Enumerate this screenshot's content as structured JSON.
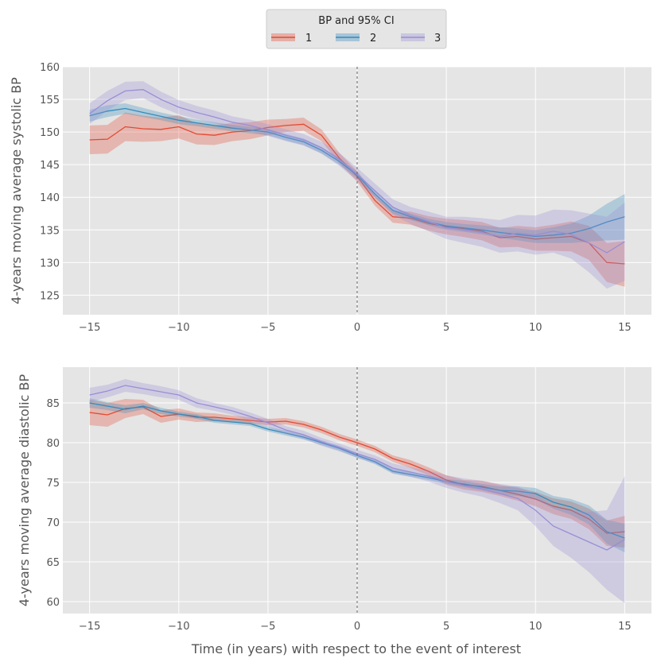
{
  "legend": {
    "title": "BP and 95% CI",
    "items": [
      {
        "label": "1",
        "color": "#e24a33"
      },
      {
        "label": "2",
        "color": "#348abd"
      },
      {
        "label": "3",
        "color": "#988ed5"
      }
    ]
  },
  "xlabel": "Time (in years) with respect to the event of interest",
  "chart_data": [
    {
      "type": "line",
      "title": "",
      "xlabel": "",
      "ylabel": "4-years moving average systolic BP",
      "xlim": [
        -16.5,
        16.5
      ],
      "ylim": [
        122,
        160
      ],
      "xticks": [
        -15,
        -10,
        -5,
        0,
        5,
        10,
        15
      ],
      "yticks": [
        125,
        130,
        135,
        140,
        145,
        150,
        155,
        160
      ],
      "vline": 0,
      "grid": true,
      "legend_position": "top-center, above plot",
      "x": [
        -15,
        -14,
        -13,
        -12,
        -11,
        -10,
        -9,
        -8,
        -7,
        -6,
        -5,
        -4,
        -3,
        -2,
        -1,
        0,
        1,
        2,
        3,
        4,
        5,
        6,
        7,
        8,
        9,
        10,
        11,
        12,
        13,
        14,
        15
      ],
      "series": [
        {
          "name": "1",
          "values": [
            148.8,
            148.9,
            150.8,
            150.5,
            150.4,
            150.8,
            149.7,
            149.5,
            150.0,
            150.2,
            150.7,
            151.0,
            151.2,
            149.5,
            146.0,
            143.2,
            139.5,
            137.0,
            136.8,
            136.0,
            135.5,
            135.2,
            134.8,
            133.8,
            134.0,
            133.6,
            133.8,
            134.0,
            133.0,
            130.0,
            129.8
          ],
          "ci_half": [
            2.2,
            2.2,
            2.2,
            2.0,
            1.8,
            1.8,
            1.6,
            1.5,
            1.4,
            1.3,
            1.2,
            1.0,
            1.0,
            0.9,
            0.8,
            0.8,
            0.8,
            0.9,
            1.0,
            1.1,
            1.2,
            1.3,
            1.4,
            1.5,
            1.6,
            1.8,
            2.0,
            2.3,
            2.6,
            3.0,
            3.5
          ]
        },
        {
          "name": "2",
          "values": [
            152.5,
            153.2,
            153.6,
            153.0,
            152.4,
            151.8,
            151.4,
            151.0,
            150.6,
            150.3,
            150.0,
            149.2,
            148.5,
            147.2,
            145.5,
            143.4,
            140.5,
            138.0,
            137.0,
            136.2,
            135.6,
            135.3,
            135.0,
            134.6,
            134.3,
            134.0,
            134.2,
            134.5,
            135.2,
            136.2,
            137.0
          ],
          "ci_half": [
            0.9,
            0.9,
            0.8,
            0.7,
            0.6,
            0.6,
            0.5,
            0.5,
            0.5,
            0.5,
            0.5,
            0.5,
            0.5,
            0.5,
            0.5,
            0.5,
            0.5,
            0.5,
            0.5,
            0.5,
            0.6,
            0.6,
            0.7,
            0.8,
            0.9,
            1.0,
            1.2,
            1.5,
            2.0,
            2.8,
            3.5
          ]
        },
        {
          "name": "3",
          "values": [
            152.8,
            154.8,
            156.3,
            156.5,
            155.0,
            153.8,
            153.0,
            152.3,
            151.5,
            151.0,
            150.3,
            149.5,
            148.8,
            147.6,
            145.8,
            143.5,
            141.0,
            138.5,
            137.2,
            136.3,
            135.3,
            135.0,
            134.6,
            134.0,
            134.5,
            134.2,
            134.8,
            134.3,
            133.0,
            131.5,
            133.2
          ],
          "ci_half": [
            1.6,
            1.5,
            1.4,
            1.3,
            1.2,
            1.1,
            1.0,
            1.0,
            0.9,
            0.9,
            0.9,
            0.9,
            0.9,
            0.9,
            1.0,
            1.0,
            1.1,
            1.2,
            1.3,
            1.5,
            1.7,
            2.0,
            2.2,
            2.5,
            2.8,
            3.0,
            3.3,
            3.7,
            4.5,
            5.5,
            6.0
          ]
        }
      ]
    },
    {
      "type": "line",
      "title": "",
      "xlabel": "Time (in years) with respect to the event of interest",
      "ylabel": "4-years moving average diastolic BP",
      "xlim": [
        -16.5,
        16.5
      ],
      "ylim": [
        58.5,
        89.5
      ],
      "xticks": [
        -15,
        -10,
        -5,
        0,
        5,
        10,
        15
      ],
      "yticks": [
        60,
        65,
        70,
        75,
        80,
        85
      ],
      "vline": 0,
      "grid": true,
      "x": [
        -15,
        -14,
        -13,
        -12,
        -11,
        -10,
        -9,
        -8,
        -7,
        -6,
        -5,
        -4,
        -3,
        -2,
        -1,
        0,
        1,
        2,
        3,
        4,
        5,
        6,
        7,
        8,
        9,
        10,
        11,
        12,
        13,
        14,
        15
      ],
      "series": [
        {
          "name": "1",
          "values": [
            83.8,
            83.5,
            84.3,
            84.5,
            83.3,
            83.6,
            83.2,
            83.2,
            83.0,
            82.8,
            82.6,
            82.7,
            82.3,
            81.6,
            80.7,
            80.0,
            79.2,
            78.0,
            77.3,
            76.4,
            75.3,
            74.7,
            74.5,
            74.0,
            73.5,
            72.9,
            72.0,
            71.5,
            70.4,
            68.6,
            68.8
          ],
          "ci_half": [
            1.6,
            1.5,
            1.2,
            0.9,
            0.8,
            0.7,
            0.6,
            0.5,
            0.4,
            0.4,
            0.4,
            0.4,
            0.4,
            0.4,
            0.4,
            0.4,
            0.4,
            0.4,
            0.5,
            0.5,
            0.6,
            0.6,
            0.7,
            0.7,
            0.8,
            0.9,
            1.0,
            1.1,
            1.3,
            1.6,
            2.0
          ]
        },
        {
          "name": "2",
          "values": [
            85.0,
            84.6,
            84.2,
            84.6,
            84.0,
            83.6,
            83.3,
            82.8,
            82.6,
            82.4,
            81.7,
            81.2,
            80.7,
            80.0,
            79.3,
            78.4,
            77.6,
            76.4,
            76.0,
            75.6,
            75.1,
            74.8,
            74.4,
            74.0,
            73.9,
            73.6,
            72.5,
            71.9,
            70.9,
            68.8,
            68.0
          ],
          "ci_half": [
            0.6,
            0.5,
            0.5,
            0.4,
            0.4,
            0.3,
            0.3,
            0.3,
            0.3,
            0.3,
            0.3,
            0.3,
            0.3,
            0.3,
            0.3,
            0.3,
            0.3,
            0.3,
            0.3,
            0.3,
            0.3,
            0.4,
            0.4,
            0.5,
            0.6,
            0.7,
            0.8,
            1.0,
            1.2,
            1.5,
            1.8
          ]
        },
        {
          "name": "3",
          "values": [
            86.0,
            86.5,
            87.2,
            86.8,
            86.4,
            86.0,
            85.0,
            84.5,
            84.0,
            83.3,
            82.5,
            81.6,
            81.0,
            80.1,
            79.4,
            78.6,
            77.9,
            76.8,
            76.3,
            75.8,
            75.1,
            74.6,
            74.2,
            73.6,
            73.0,
            71.5,
            69.5,
            68.5,
            67.5,
            66.5,
            67.8
          ],
          "ci_half": [
            0.9,
            0.8,
            0.8,
            0.7,
            0.7,
            0.6,
            0.6,
            0.5,
            0.5,
            0.5,
            0.5,
            0.5,
            0.5,
            0.5,
            0.5,
            0.5,
            0.5,
            0.6,
            0.6,
            0.7,
            0.8,
            0.9,
            1.0,
            1.2,
            1.5,
            2.0,
            2.5,
            3.0,
            3.8,
            5.0,
            8.0
          ]
        }
      ]
    }
  ]
}
